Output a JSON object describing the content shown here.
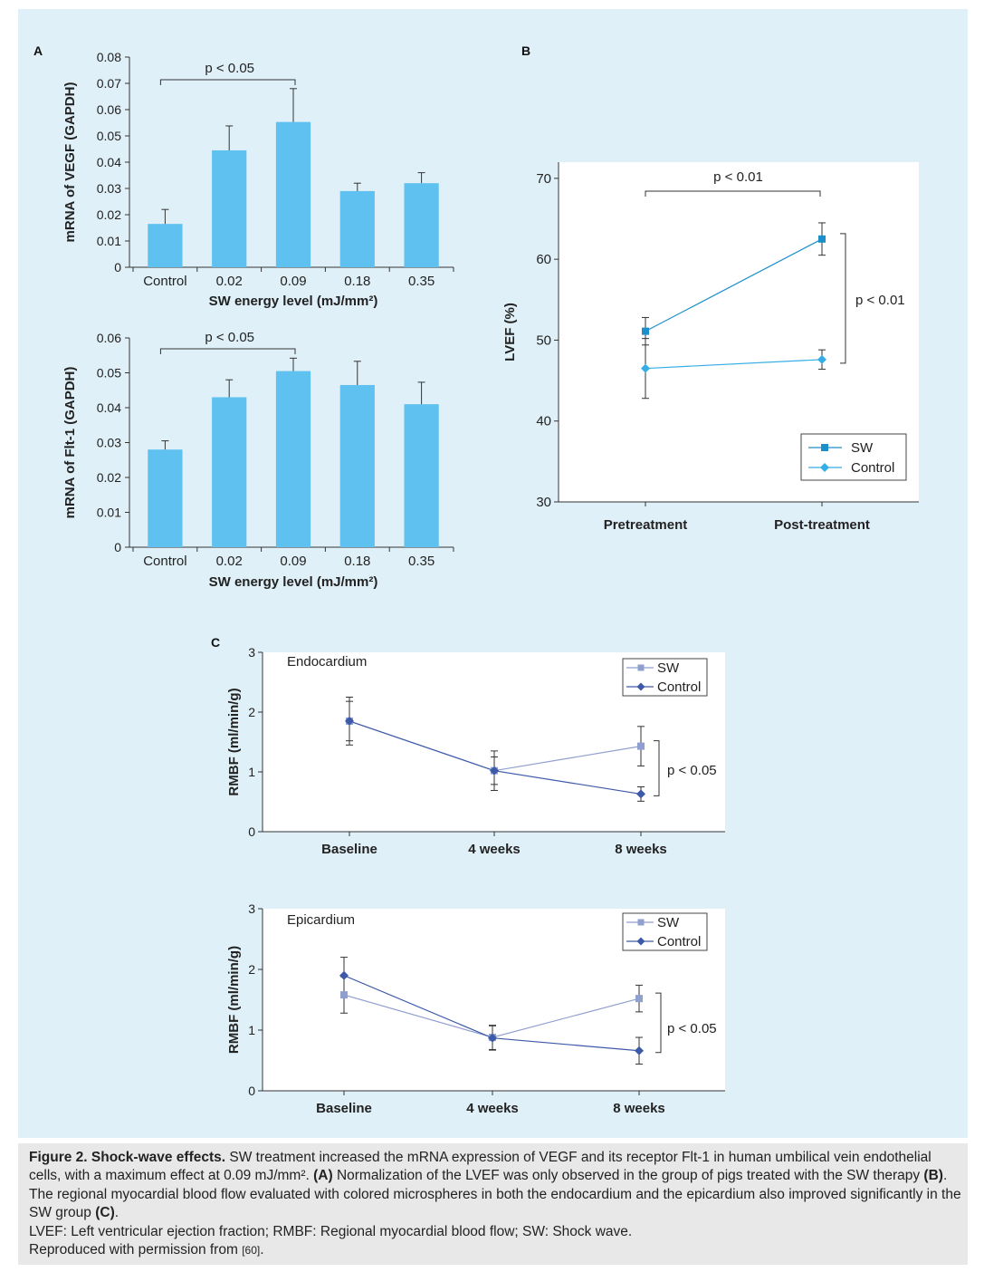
{
  "chart_data": [
    {
      "id": "A1",
      "type": "bar",
      "panel_label": "A",
      "categories": [
        "Control",
        "0.02",
        "0.09",
        "0.18",
        "0.35"
      ],
      "values": [
        0.0165,
        0.0445,
        0.0553,
        0.029,
        0.032
      ],
      "errors": [
        0.0055,
        0.0093,
        0.0127,
        0.003,
        0.004
      ],
      "ylabel": "mRNA of VEGF (GAPDH)",
      "xlabel": "SW energy level (mJ/mm²)",
      "ylim": [
        0,
        0.08
      ],
      "yticks": [
        "0",
        "0.01",
        "0.02",
        "0.03",
        "0.04",
        "0.05",
        "0.06",
        "0.07",
        "0.08"
      ],
      "bar_color": "#5fc1ef",
      "annotation": "p < 0.05"
    },
    {
      "id": "A2",
      "type": "bar",
      "categories": [
        "Control",
        "0.02",
        "0.09",
        "0.18",
        "0.35"
      ],
      "values": [
        0.028,
        0.043,
        0.0505,
        0.0465,
        0.041
      ],
      "errors": [
        0.0025,
        0.005,
        0.0037,
        0.0068,
        0.0063
      ],
      "ylabel": "mRNA of Flt-1 (GAPDH)",
      "xlabel": "SW energy level (mJ/mm²)",
      "ylim": [
        0,
        0.06
      ],
      "yticks": [
        "0",
        "0.01",
        "0.02",
        "0.03",
        "0.04",
        "0.05",
        "0.06"
      ],
      "bar_color": "#5fc1ef",
      "annotation": "p < 0.05"
    },
    {
      "id": "B",
      "type": "line",
      "panel_label": "B",
      "categories": [
        "Pretreatment",
        "Post-treatment"
      ],
      "series": [
        {
          "name": "SW",
          "values": [
            51.1,
            62.5
          ],
          "errors": [
            1.7,
            2.0
          ],
          "color": "#1a8fc9",
          "marker": "square"
        },
        {
          "name": "Control",
          "values": [
            46.5,
            47.6
          ],
          "errors": [
            3.7,
            1.2
          ],
          "color": "#35ade6",
          "marker": "diamond"
        }
      ],
      "ylabel": "LVEF (%)",
      "ylim": [
        30,
        72
      ],
      "yticks": [
        "30",
        "40",
        "50",
        "60",
        "70"
      ],
      "legend_position": "bottom-right",
      "annotations": [
        "p < 0.01",
        "p < 0.01"
      ]
    },
    {
      "id": "C1",
      "type": "line",
      "panel_label": "C",
      "title": "Endocardium",
      "categories": [
        "Baseline",
        "4 weeks",
        "8 weeks"
      ],
      "series": [
        {
          "name": "SW",
          "values": [
            1.85,
            1.02,
            1.43
          ],
          "errors": [
            0.4,
            0.33,
            0.33
          ],
          "color": "#8f9fcf",
          "marker": "square"
        },
        {
          "name": "Control",
          "values": [
            1.85,
            1.02,
            0.63
          ],
          "errors": [
            0.33,
            0.23,
            0.12
          ],
          "color": "#3d5aa8",
          "marker": "diamond"
        }
      ],
      "ylabel": "RMBF (ml/min/g)",
      "ylim": [
        0,
        3
      ],
      "yticks": [
        "0",
        "1",
        "2",
        "3"
      ],
      "legend_position": "top-right",
      "annotation": "p < 0.05"
    },
    {
      "id": "C2",
      "type": "line",
      "title": "Epicardium",
      "categories": [
        "Baseline",
        "4 weeks",
        "8 weeks"
      ],
      "series": [
        {
          "name": "SW",
          "values": [
            1.58,
            0.88,
            1.52
          ],
          "errors": [
            0.3,
            0.2,
            0.22
          ],
          "color": "#8f9fcf",
          "marker": "square"
        },
        {
          "name": "Control",
          "values": [
            1.9,
            0.87,
            0.66
          ],
          "errors": [
            0.3,
            0.2,
            0.22
          ],
          "color": "#3d5aa8",
          "marker": "diamond"
        }
      ],
      "ylabel": "RMBF (ml/min/g)",
      "ylim": [
        0,
        3
      ],
      "yticks": [
        "0",
        "1",
        "2",
        "3"
      ],
      "legend_position": "top-right",
      "annotation": "p < 0.05"
    }
  ],
  "caption": {
    "heading": "Figure 2. Shock-wave effects.",
    "text1": " SW treatment increased the mRNA expression of VEGF and its receptor Flt-1 in human umbilical vein endothelial cells, with a maximum effect at 0.09 mJ/mm². ",
    "label_a": "(A)",
    "text2": " Normalization of the LVEF was only observed in the group of pigs treated with the SW therapy ",
    "label_b": "(B)",
    "text3": ". The regional myocardial blood flow evaluated with colored microspheres in both the endocardium and the epicardium also improved significantly in the SW group ",
    "label_c": "(C)",
    "text4": ".",
    "abbreviations": "LVEF: Left ventricular ejection fraction; RMBF: Regional myocardial blood flow; SW: Shock wave.",
    "permission": "Reproduced with permission from ",
    "reference": "[60]",
    "permission_end": "."
  }
}
